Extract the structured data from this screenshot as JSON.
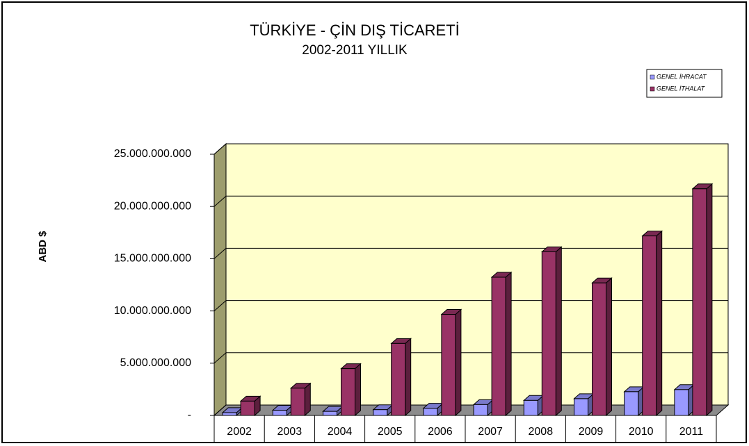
{
  "chart_data": {
    "type": "bar3d",
    "title": "TÜRKİYE - ÇİN DIŞ TİCARETİ",
    "subtitle": "2002-2011 YILLIK",
    "y_label": "ABD $",
    "categories": [
      "2002",
      "2003",
      "2004",
      "2005",
      "2006",
      "2007",
      "2008",
      "2009",
      "2010",
      "2011"
    ],
    "series": [
      {
        "name": "GENEL İHRACAT",
        "color": "#9999ff",
        "values": [
          270000000,
          500000000,
          390000000,
          550000000,
          690000000,
          1040000000,
          1440000000,
          1600000000,
          2270000000,
          2470000000
        ]
      },
      {
        "name": "GENEL İTHALAT",
        "color": "#993366",
        "values": [
          1370000000,
          2610000000,
          4480000000,
          6890000000,
          9670000000,
          13230000000,
          15660000000,
          12680000000,
          17180000000,
          21690000000
        ]
      }
    ],
    "ylim": [
      0,
      25000000000
    ],
    "yticks": [
      {
        "value": 0,
        "label": "-"
      },
      {
        "value": 5000000000,
        "label": "5.000.000.000"
      },
      {
        "value": 10000000000,
        "label": "10.000.000.000"
      },
      {
        "value": 15000000000,
        "label": "15.000.000.000"
      },
      {
        "value": 20000000000,
        "label": "20.000.000.000"
      },
      {
        "value": 25000000000,
        "label": "25.000.000.000"
      }
    ],
    "grid": true,
    "legend": "top-right",
    "wall_color": "#ffffcc"
  }
}
